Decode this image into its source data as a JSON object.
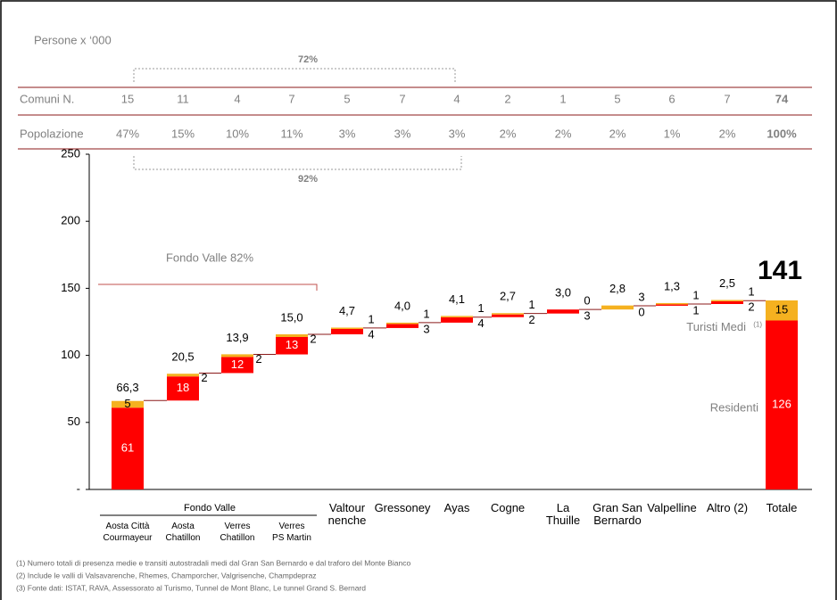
{
  "chart_data": {
    "type": "waterfall",
    "unit_label": "Persone x ‘000",
    "categories": [
      "Aosta Città\nCourmayeur",
      "Aosta\nChatillon",
      "Verres\nChatillon",
      "Verres\nPS Martin",
      "Valtour\nnenche",
      "Gressoney",
      "Ayas",
      "Cogne",
      "La\nThuille",
      "Gran San\nBernardo",
      "Valpelline",
      "Altro (2)",
      "Totale"
    ],
    "group_label": "Fondo Valle",
    "series": [
      {
        "name": "Residenti",
        "color": "#ff0000",
        "values": [
          61,
          18,
          12,
          13,
          4,
          3,
          4,
          2,
          3,
          0,
          1,
          2,
          126
        ]
      },
      {
        "name": "Turisti Medi",
        "note": "(1)",
        "color": "#f5b120",
        "values": [
          5,
          2,
          2,
          2,
          1,
          1,
          1,
          1,
          0,
          3,
          1,
          1,
          15
        ]
      }
    ],
    "totals": [
      66.3,
      20.5,
      13.9,
      15.0,
      4.7,
      4.0,
      4.1,
      2.7,
      3.0,
      2.8,
      1.3,
      2.5,
      141
    ],
    "totals_labels": [
      "66,3",
      "20,5",
      "13,9",
      "15,0",
      "4,7",
      "4,0",
      "4,1",
      "2,7",
      "3,0",
      "2,8",
      "1,3",
      "2,5",
      "141"
    ],
    "ylim": [
      0,
      250
    ],
    "yticks": [
      {
        "value": 0,
        "label": "-"
      },
      50,
      100,
      150,
      200,
      250
    ],
    "annotation": "Fondo Valle 82%",
    "table": {
      "rows": [
        {
          "label": "Comuni N.",
          "cells": [
            "15",
            "11",
            "4",
            "7",
            "5",
            "7",
            "4",
            "2",
            "1",
            "5",
            "6",
            "7",
            "74"
          ]
        },
        {
          "label": "Popolazione",
          "cells": [
            "47%",
            "15%",
            "10%",
            "11%",
            "3%",
            "3%",
            "3%",
            "2%",
            "2%",
            "2%",
            "1%",
            "2%",
            "100%"
          ]
        }
      ]
    },
    "brackets": [
      "72%",
      "92%"
    ],
    "footnotes": [
      "(1) Numero totali di presenza medie e transiti autostradali medi dal Gran San Bernardo e dal traforo del Monte Bianco",
      "(2) Include le valli di Valsavarenche, Rhemes, Champorcher, Valgrisenche, Champdepraz",
      "(3) Fonte dati: ISTAT, RAVA, Assessorato al Turismo, Tunnel de Mont Blanc, Le tunnel Grand S. Bernard"
    ]
  }
}
